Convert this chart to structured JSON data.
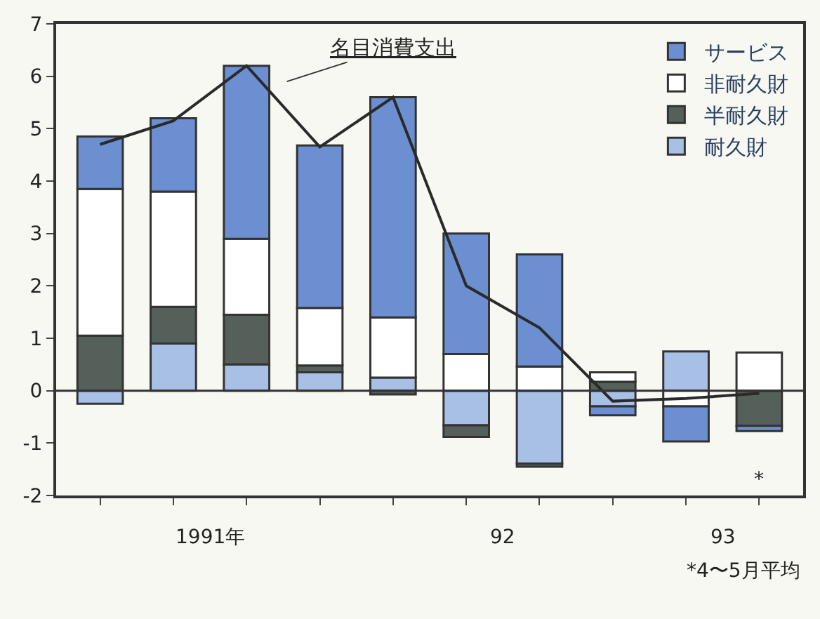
{
  "chart_data": {
    "type": "bar",
    "stacked": true,
    "categories": [
      null,
      null,
      null,
      null,
      null,
      null,
      null,
      null,
      null,
      null
    ],
    "series": [
      {
        "name": "耐久財",
        "color": "#a9c0e6",
        "values": [
          -0.25,
          0.9,
          0.5,
          0.35,
          0.25,
          -0.66,
          -1.39,
          -0.3,
          0.75,
          null
        ]
      },
      {
        "name": "半耐久財",
        "color": "#55605a",
        "values": [
          1.05,
          0.7,
          0.95,
          0.13,
          -0.07,
          -0.22,
          -0.06,
          0.17,
          null,
          -0.67
        ]
      },
      {
        "name": "非耐久財",
        "color": "#ffffff",
        "values": [
          2.8,
          2.2,
          1.45,
          1.1,
          1.15,
          0.7,
          0.46,
          0.18,
          -0.3,
          0.73
        ]
      },
      {
        "name": "サービス",
        "color": "#6b8fd0",
        "values": [
          1.0,
          1.4,
          3.3,
          3.1,
          4.2,
          2.3,
          2.14,
          -0.17,
          -0.67,
          -0.1
        ]
      },
      {
        "name": "名目消費支出",
        "type": "line",
        "color": "#2a2a2a",
        "marker": "none",
        "values": [
          4.7,
          5.15,
          6.2,
          4.65,
          5.6,
          2.0,
          1.2,
          -0.2,
          -0.15,
          -0.05
        ]
      }
    ],
    "ylim": [
      -2,
      7
    ],
    "yticks": [
      -2,
      -1,
      0,
      1,
      2,
      3,
      4,
      5,
      6,
      7
    ],
    "grid": false,
    "ref_lines": [
      {
        "axis": "y",
        "value": 0,
        "color": "#333333"
      }
    ],
    "legend": "top right",
    "annotations": [
      "1991年",
      "92",
      "93",
      "*",
      "*4〜5月平均"
    ]
  }
}
